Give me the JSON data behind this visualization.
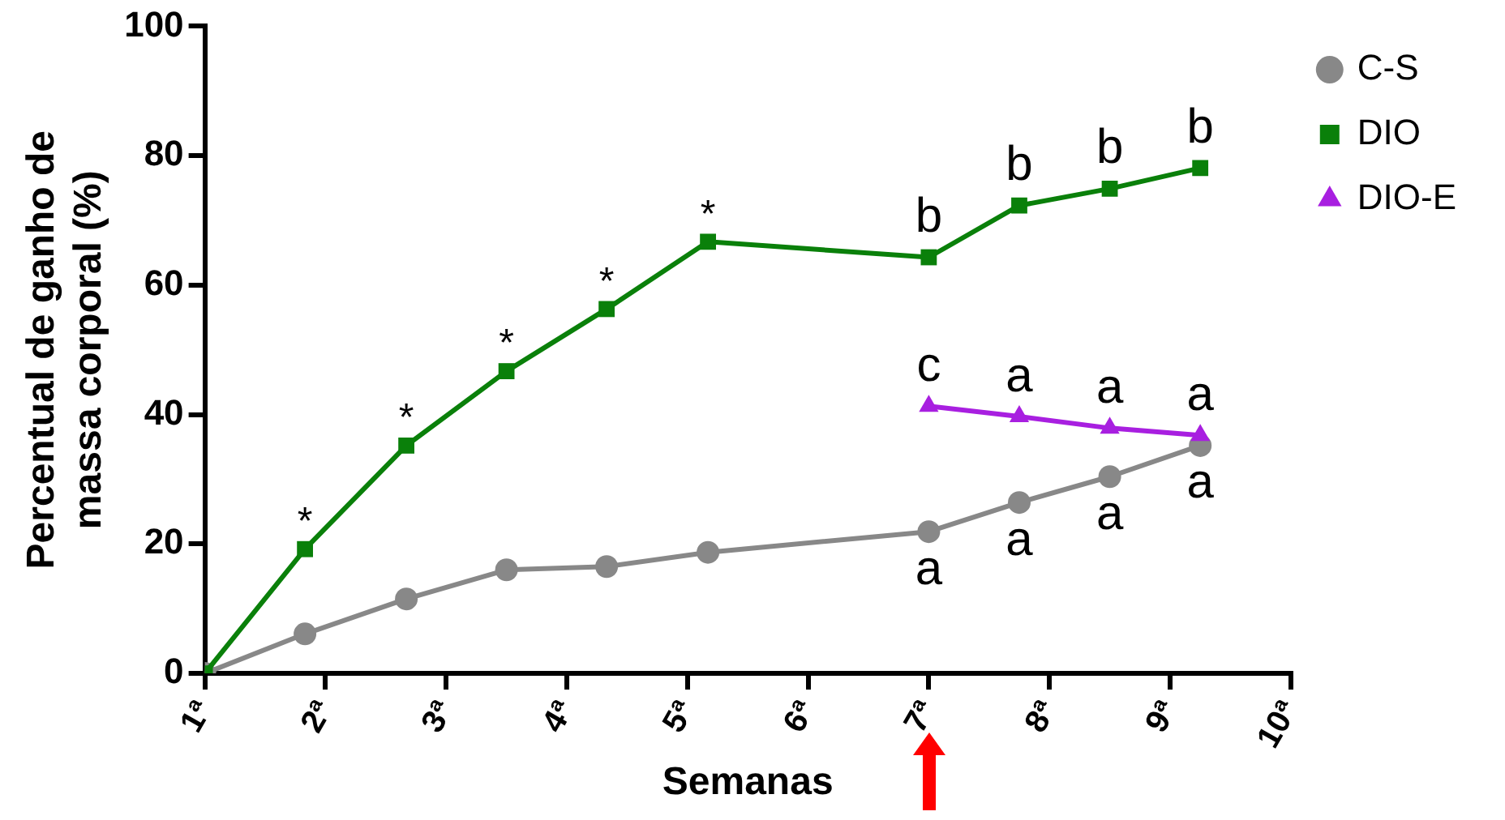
{
  "chart_data": {
    "type": "line",
    "xlabel": "Semanas",
    "ylabel": "Percentual de ganho de\nmassa corporal (%)",
    "x": [
      1,
      1.83,
      2.67,
      3.5,
      4.33,
      5.17,
      7,
      7.75,
      8.5,
      9.25
    ],
    "series": [
      {
        "name": "C-S",
        "color": "#888888",
        "marker": "circle",
        "values": [
          0,
          6.1,
          11.5,
          16,
          16.5,
          18.7,
          21.9,
          26.4,
          30.4,
          35.2
        ]
      },
      {
        "name": "DIO",
        "color": "#0a800a",
        "marker": "square",
        "values": [
          0,
          19.2,
          35.2,
          46.7,
          56.3,
          66.7,
          64.3,
          72.3,
          74.9,
          78.1
        ]
      },
      {
        "name": "DIO-E",
        "color": "#a81fe0",
        "marker": "triangle",
        "values": [
          null,
          null,
          null,
          null,
          null,
          null,
          41.3,
          39.7,
          37.9,
          36.8
        ]
      }
    ],
    "xlim": [
      1,
      10
    ],
    "xticks": [
      {
        "value": 1,
        "label": "1ª"
      },
      {
        "value": 2,
        "label": "2ª"
      },
      {
        "value": 3,
        "label": "3ª"
      },
      {
        "value": 4,
        "label": "4ª"
      },
      {
        "value": 5,
        "label": "5ª"
      },
      {
        "value": 6,
        "label": "6ª"
      },
      {
        "value": 7,
        "label": "7ª"
      },
      {
        "value": 8,
        "label": "8ª"
      },
      {
        "value": 9,
        "label": "9ª"
      },
      {
        "value": 10,
        "label": "10ª"
      }
    ],
    "ylim": [
      0,
      100
    ],
    "yticks": [
      0,
      20,
      40,
      60,
      80,
      100
    ],
    "grid": false,
    "legend": "top right",
    "line_style": "solid",
    "annotations": [
      {
        "text": "*",
        "x": 1.83,
        "y": 19.2
      },
      {
        "text": "*",
        "x": 2.67,
        "y": 35.2
      },
      {
        "text": "*",
        "x": 3.5,
        "y": 46.7
      },
      {
        "text": "*",
        "x": 4.33,
        "y": 56.3
      },
      {
        "text": "*",
        "x": 5.17,
        "y": 66.7
      },
      {
        "text": "b",
        "x": 7,
        "y": 64.3
      },
      {
        "text": "b",
        "x": 7.75,
        "y": 72.3
      },
      {
        "text": "b",
        "x": 8.5,
        "y": 74.9
      },
      {
        "text": "b",
        "x": 9.25,
        "y": 78.1
      },
      {
        "text": "c",
        "x": 7,
        "y": 41.3
      },
      {
        "text": "a",
        "x": 7.75,
        "y": 39.7
      },
      {
        "text": "a",
        "x": 8.5,
        "y": 37.9
      },
      {
        "text": "a",
        "x": 9.25,
        "y": 36.8
      },
      {
        "text": "a",
        "x": 7,
        "y": 21.9
      },
      {
        "text": "a",
        "x": 7.75,
        "y": 26.4
      },
      {
        "text": "a",
        "x": 8.5,
        "y": 30.4
      },
      {
        "text": "a",
        "x": 9.25,
        "y": 35.2
      }
    ]
  }
}
